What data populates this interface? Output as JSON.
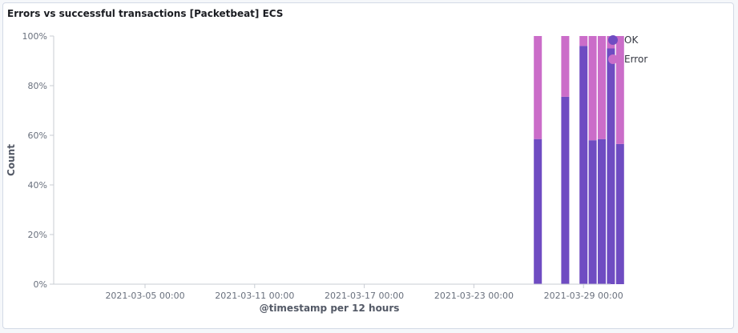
{
  "panel": {
    "title": "Errors vs successful transactions [Packetbeat] ECS"
  },
  "chart_data": {
    "type": "bar",
    "stacked": true,
    "percentage": true,
    "title": "Errors vs successful transactions [Packetbeat] ECS",
    "xlabel": "@timestamp per 12 hours",
    "ylabel": "Count",
    "ylim": [
      0,
      100
    ],
    "yticks": [
      "0%",
      "20%",
      "40%",
      "60%",
      "80%",
      "100%"
    ],
    "xticks": [
      "2021-03-05 00:00",
      "2021-03-11 00:00",
      "2021-03-17 00:00",
      "2021-03-23 00:00",
      "2021-03-29 00:00"
    ],
    "x": [
      "2021-03-26 12:00",
      "2021-03-28 00:00",
      "2021-03-29 00:00",
      "2021-03-29 12:00",
      "2021-03-30 00:00",
      "2021-03-30 12:00",
      "2021-03-31 00:00"
    ],
    "series": [
      {
        "name": "OK",
        "color": "#6f4cc2",
        "values": [
          58.5,
          75.5,
          96,
          58,
          58.5,
          95,
          56.5
        ]
      },
      {
        "name": "Error",
        "color": "#cb6dc9",
        "values": [
          41.5,
          24.5,
          4,
          42,
          41.5,
          5,
          43.5
        ]
      }
    ],
    "legend": "right",
    "grid": false
  }
}
